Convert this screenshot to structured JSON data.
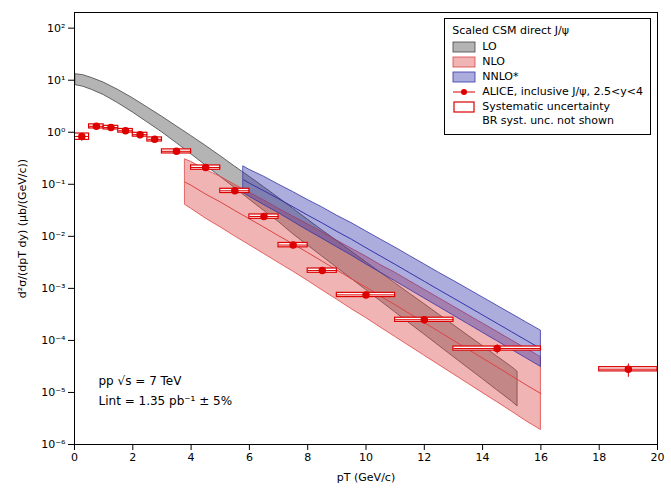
{
  "chart_data": {
    "type": "band_scatter",
    "legend_title": "Scaled CSM direct J/ψ",
    "xlabel": "pT (GeV/c)",
    "ylabel": "d²σ/(dpT dy) (μb/(GeV/c))",
    "annotations": [
      "pp √s = 7 TeV",
      "Lint = 1.35 pb⁻¹ ± 5%"
    ],
    "log": "y",
    "grid": false,
    "legend": "upper right",
    "xlim": [
      0,
      20
    ],
    "xticks": [
      0,
      2,
      4,
      6,
      8,
      10,
      12,
      14,
      16,
      18,
      20
    ],
    "ylim": [
      1e-06,
      200
    ],
    "yticks": [
      {
        "value": 1e-06,
        "label": "10⁻⁶"
      },
      {
        "value": 1e-05,
        "label": "10⁻⁵"
      },
      {
        "value": 0.0001,
        "label": "10⁻⁴"
      },
      {
        "value": 0.001,
        "label": "10⁻³"
      },
      {
        "value": 0.01,
        "label": "10⁻²"
      },
      {
        "value": 0.1,
        "label": "10⁻¹"
      },
      {
        "value": 1,
        "label": "10⁰"
      },
      {
        "value": 10,
        "label": "10¹"
      },
      {
        "value": 100,
        "label": "10²"
      }
    ],
    "series": [
      {
        "name": "LO",
        "type": "band",
        "color": "#444444",
        "x": [
          0.05,
          0.3,
          0.6,
          1.0,
          1.5,
          2.0,
          2.5,
          3.0,
          3.5,
          4.0,
          4.5,
          5.0,
          5.5,
          6.0,
          6.5,
          7.0,
          7.5,
          8.0,
          8.5,
          9.0,
          9.5,
          10.0,
          10.5,
          11.0,
          11.5,
          12.0,
          12.5,
          13.0,
          13.5,
          14.0,
          14.5,
          15.0,
          15.2
        ],
        "upper": [
          13.0,
          12.5,
          11.0,
          9.0,
          6.5,
          4.5,
          3.0,
          2.0,
          1.3,
          0.85,
          0.55,
          0.35,
          0.22,
          0.14,
          0.088,
          0.055,
          0.034,
          0.021,
          0.013,
          0.0082,
          0.0051,
          0.0032,
          0.002,
          0.00126,
          0.00079,
          0.0005,
          0.000314,
          0.000198,
          0.000124,
          7.82e-05,
          4.91e-05,
          3.09e-05,
          2.5e-05
        ],
        "lower": [
          8.0,
          7.5,
          6.5,
          5.2,
          3.6,
          2.4,
          1.55,
          1.0,
          0.62,
          0.38,
          0.23,
          0.14,
          0.085,
          0.051,
          0.031,
          0.019,
          0.011,
          0.0067,
          0.0041,
          0.0025,
          0.00153,
          0.00093,
          0.00057,
          0.000347,
          0.000212,
          0.00013,
          7.91e-05,
          4.84e-05,
          2.95e-05,
          1.81e-05,
          1.1e-05,
          6.74e-06,
          5.4e-06
        ]
      },
      {
        "name": "NLO",
        "type": "band",
        "color": "#dd4444",
        "x": [
          3.8,
          4.0,
          4.5,
          5.0,
          5.5,
          6.0,
          6.5,
          7.0,
          7.5,
          8.0,
          8.5,
          9.0,
          9.5,
          10.0,
          10.5,
          11.0,
          11.5,
          12.0,
          12.5,
          13.0,
          13.5,
          14.0,
          14.5,
          15.0,
          15.5,
          16.0
        ],
        "upper": [
          0.3,
          0.27,
          0.19,
          0.14,
          0.098,
          0.069,
          0.049,
          0.034,
          0.024,
          0.017,
          0.012,
          0.0083,
          0.0058,
          0.0041,
          0.0028,
          0.002,
          0.00137,
          0.000943,
          0.000649,
          0.000447,
          0.000307,
          0.000212,
          0.000146,
          0.0001,
          6.91e-05,
          4.76e-05
        ],
        "lower": [
          0.04,
          0.034,
          0.022,
          0.015,
          0.01,
          0.0068,
          0.0046,
          0.0031,
          0.0021,
          0.0014,
          0.00092,
          0.00061,
          0.0004,
          0.00027,
          0.000177,
          0.000117,
          7.73e-05,
          5.11e-05,
          3.38e-05,
          2.24e-05,
          1.48e-05,
          9.8e-06,
          6.5e-06,
          4.3e-06,
          2.8e-06,
          1.9e-06
        ],
        "values": [
          0.10954,
          0.095812,
          0.064653,
          0.045826,
          0.031305,
          0.021661,
          0.015013,
          0.010266,
          0.0070993,
          0.0048785,
          0.0033226,
          0.0022501,
          0.0015232,
          0.0010521,
          0.00070399,
          0.00048374,
          0.00032542,
          0.00021952,
          0.00014811,
          0.00010006,
          6.7406e-05,
          4.5581e-05,
          3.0806e-05,
          2.0736e-05,
          1.391e-05,
          9.51e-06
        ]
      },
      {
        "name": "NNLO*",
        "type": "band",
        "color": "#3333aa",
        "x": [
          5.8,
          6.0,
          6.5,
          7.0,
          7.5,
          8.0,
          8.5,
          9.0,
          9.5,
          10.0,
          10.5,
          11.0,
          11.5,
          12.0,
          12.5,
          13.0,
          13.5,
          14.0,
          14.5,
          15.0,
          15.5,
          16.0
        ],
        "upper": [
          0.22,
          0.19,
          0.14,
          0.099,
          0.071,
          0.05,
          0.036,
          0.025,
          0.018,
          0.0125,
          0.0087,
          0.0061,
          0.0042,
          0.0029,
          0.002,
          0.0014,
          0.00097,
          0.000671,
          0.000464,
          0.000321,
          0.000222,
          0.000154
        ],
        "lower": [
          0.068,
          0.058,
          0.04,
          0.028,
          0.019,
          0.013,
          0.009,
          0.0062,
          0.0043,
          0.0029,
          0.002,
          0.00137,
          0.000938,
          0.000642,
          0.00044,
          0.000301,
          0.000206,
          0.000141,
          9.67e-05,
          6.61e-05,
          4.53e-05,
          3.1e-05
        ],
        "values": [
          0.12231,
          0.10498,
          0.074833,
          0.05265,
          0.036729,
          0.025495,
          0.018,
          0.01245,
          0.0087977,
          0.0060208,
          0.0041713,
          0.0028909,
          0.0019848,
          0.0013645,
          0.00093808,
          0.00064915,
          0.00044701,
          0.00030759,
          0.00021182,
          0.00014566,
          0.00010028,
          6.9094e-05
        ]
      },
      {
        "name": "ALICE, inclusive J/ψ, 2.5<y<4",
        "type": "scatter",
        "color": "#dd0000",
        "x": [
          0.25,
          0.75,
          1.25,
          1.75,
          2.25,
          2.75,
          3.5,
          4.5,
          5.5,
          6.5,
          7.5,
          8.5,
          10.0,
          12.0,
          14.5,
          19.0
        ],
        "values": [
          0.83,
          1.3,
          1.23,
          1.07,
          0.9,
          0.73,
          0.43,
          0.21,
          0.075,
          0.024,
          0.0068,
          0.0022,
          0.00075,
          0.00025,
          7e-05,
          2.8e-05
        ],
        "yerr": [
          0.14,
          0.09,
          0.07,
          0.06,
          0.05,
          0.04,
          0.025,
          0.015,
          0.006,
          0.002,
          0.0007,
          0.00022,
          9e-05,
          4e-05,
          1.4e-05,
          8e-06
        ],
        "xerr": [
          0.25,
          0.25,
          0.25,
          0.25,
          0.25,
          0.25,
          0.5,
          0.5,
          0.5,
          0.5,
          0.5,
          0.5,
          1.0,
          1.0,
          1.5,
          1.0
        ]
      },
      {
        "name": "Systematic uncertainty\nBR syst. unc. not shown",
        "type": "box",
        "color": "#dd0000",
        "x": [
          0.25,
          0.75,
          1.25,
          1.75,
          2.25,
          2.75,
          3.5,
          4.5,
          5.5,
          6.5,
          7.5,
          8.5,
          10.0,
          12.0,
          14.5,
          19.0
        ],
        "values": [
          0.83,
          1.3,
          1.23,
          1.07,
          0.9,
          0.73,
          0.43,
          0.21,
          0.075,
          0.024,
          0.0068,
          0.0022,
          0.00075,
          0.00025,
          7e-05,
          2.8e-05
        ],
        "yerr": [
          0.1162,
          0.117,
          0.0984,
          0.0856,
          0.0765,
          0.0657,
          0.0387,
          0.01995,
          0.006975,
          0.002304,
          0.0006528,
          0.000209,
          6.975e-05,
          2.3e-05,
          6.3e-06,
          2.604e-06
        ],
        "xerr": [
          0.25,
          0.25,
          0.25,
          0.25,
          0.25,
          0.25,
          0.5,
          0.5,
          0.5,
          0.5,
          0.5,
          0.5,
          1.0,
          1.0,
          1.5,
          1.0
        ]
      }
    ]
  }
}
